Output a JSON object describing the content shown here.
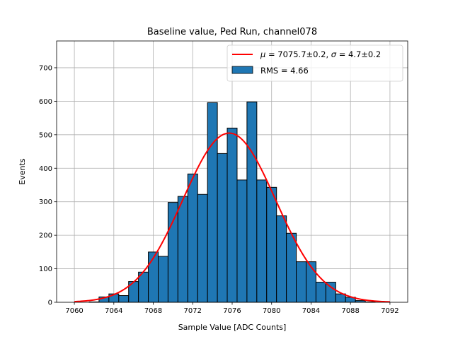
{
  "chart_data": {
    "type": "histogram",
    "title": "Baseline value, Ped Run, channel078",
    "xlabel": "Sample Value [ADC Counts]",
    "ylabel": "Events",
    "xlim": [
      7058.2,
      7093.8
    ],
    "ylim": [
      0,
      780
    ],
    "xticks": [
      7060,
      7064,
      7068,
      7072,
      7076,
      7080,
      7084,
      7088,
      7092
    ],
    "yticks": [
      0,
      100,
      200,
      300,
      400,
      500,
      600,
      700
    ],
    "grid": true,
    "legend_position": "top-right",
    "bin_width": 1,
    "bins": [
      {
        "x": 7062,
        "y": 1
      },
      {
        "x": 7063,
        "y": 16
      },
      {
        "x": 7064,
        "y": 25
      },
      {
        "x": 7065,
        "y": 20
      },
      {
        "x": 7066,
        "y": 62
      },
      {
        "x": 7067,
        "y": 90
      },
      {
        "x": 7068,
        "y": 150
      },
      {
        "x": 7069,
        "y": 137
      },
      {
        "x": 7070,
        "y": 298
      },
      {
        "x": 7071,
        "y": 316
      },
      {
        "x": 7072,
        "y": 383
      },
      {
        "x": 7073,
        "y": 322
      },
      {
        "x": 7074,
        "y": 596
      },
      {
        "x": 7075,
        "y": 444
      },
      {
        "x": 7076,
        "y": 520
      },
      {
        "x": 7077,
        "y": 365
      },
      {
        "x": 7078,
        "y": 598
      },
      {
        "x": 7079,
        "y": 365
      },
      {
        "x": 7080,
        "y": 343
      },
      {
        "x": 7081,
        "y": 258
      },
      {
        "x": 7082,
        "y": 206
      },
      {
        "x": 7083,
        "y": 121
      },
      {
        "x": 7084,
        "y": 121
      },
      {
        "x": 7085,
        "y": 60
      },
      {
        "x": 7086,
        "y": 60
      },
      {
        "x": 7087,
        "y": 25
      },
      {
        "x": 7088,
        "y": 15
      },
      {
        "x": 7089,
        "y": 5
      },
      {
        "x": 7090,
        "y": 1
      }
    ],
    "fit": {
      "mu": 7075.7,
      "sigma": 4.7,
      "amplitude": 505,
      "x_range": [
        7060,
        7092
      ]
    },
    "series": [
      {
        "name": "μ = 7075.7±0.2, σ = 4.7±0.2",
        "type": "line",
        "color": "#ff0000"
      },
      {
        "name": "RMS = 4.66",
        "type": "bar",
        "color": "#1f77b4"
      }
    ]
  }
}
